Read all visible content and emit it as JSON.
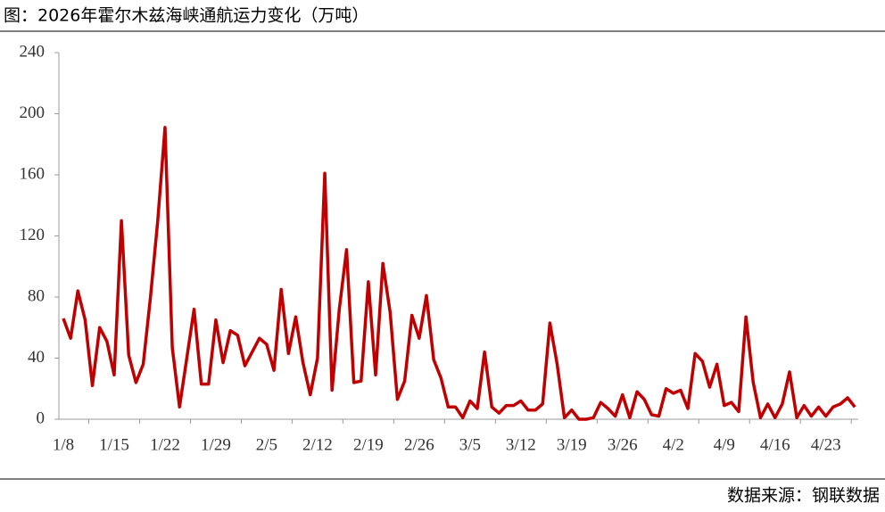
{
  "chart_data": {
    "type": "line",
    "title": "图：2026年霍尔木兹海峡通航运力变化（万吨）",
    "source": "数据来源：钢联数据",
    "categories": [
      "1/8",
      null,
      null,
      null,
      null,
      null,
      null,
      "1/15",
      null,
      null,
      null,
      null,
      null,
      null,
      "1/22",
      null,
      null,
      null,
      null,
      null,
      null,
      "1/29",
      null,
      null,
      null,
      null,
      null,
      null,
      "2/5",
      null,
      null,
      null,
      null,
      null,
      null,
      "2/12",
      null,
      null,
      null,
      null,
      null,
      null,
      "2/19",
      null,
      null,
      null,
      null,
      null,
      null,
      "2/26",
      null,
      null,
      null,
      null,
      null,
      null,
      "3/5",
      null,
      null,
      null,
      null,
      null,
      null,
      "3/12",
      null,
      null,
      null,
      null,
      null,
      null,
      "3/19",
      null,
      null,
      null,
      null,
      null,
      null,
      "3/26",
      null,
      null,
      null,
      null,
      null,
      null,
      "4/2",
      null,
      null,
      null,
      null,
      null,
      null,
      "4/9",
      null,
      null,
      null,
      null,
      null,
      null,
      "4/16",
      null,
      null,
      null,
      null,
      null,
      null,
      "4/23",
      null,
      null,
      null,
      null
    ],
    "series": [
      {
        "color": "#c00000",
        "values": [
          66,
          53,
          84,
          65,
          22,
          60,
          51,
          29,
          130,
          42,
          24,
          36,
          80,
          130,
          191,
          47,
          8,
          40,
          72,
          23,
          23,
          65,
          37,
          58,
          55,
          35,
          44,
          53,
          49,
          32,
          85,
          43,
          67,
          37,
          16,
          40,
          161,
          19,
          72,
          111,
          24,
          25,
          90,
          29,
          102,
          70,
          13,
          25,
          68,
          53,
          81,
          39,
          27,
          8,
          8,
          1,
          12,
          7,
          44,
          8,
          4,
          9,
          9,
          12,
          6,
          6,
          10,
          63,
          36,
          1,
          6,
          0,
          0,
          1,
          11,
          7,
          2,
          16,
          1,
          18,
          13,
          3,
          2,
          20,
          17,
          19,
          7,
          43,
          38,
          21,
          36,
          9,
          11,
          5,
          67,
          24,
          1,
          10,
          1,
          10,
          31,
          1,
          9,
          2,
          8,
          2,
          8,
          10,
          14,
          8
        ]
      }
    ],
    "ylim": [
      0,
      240
    ],
    "yticks": [
      0,
      40,
      80,
      120,
      160,
      200,
      240
    ]
  }
}
